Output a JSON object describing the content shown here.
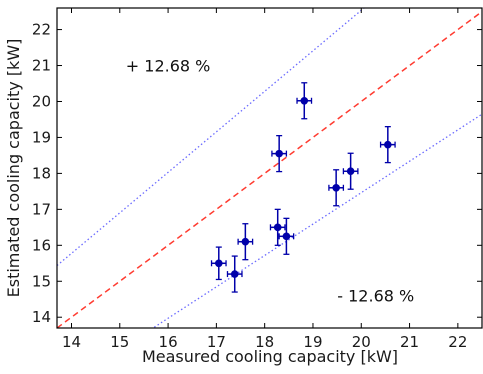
{
  "chart_data": {
    "type": "scatter",
    "title": "",
    "xlabel": "Measured cooling capacity [kW]",
    "ylabel": "Estimated cooling capacity [kW]",
    "xlim": [
      13.7,
      22.5
    ],
    "ylim": [
      13.7,
      22.6
    ],
    "xticks": [
      14,
      15,
      16,
      17,
      18,
      19,
      20,
      21,
      22
    ],
    "yticks": [
      14,
      15,
      16,
      17,
      18,
      19,
      20,
      21,
      22
    ],
    "grid": false,
    "points": [
      {
        "x": 17.05,
        "y": 15.5,
        "xerr": 0.15,
        "yerr": 0.45
      },
      {
        "x": 17.38,
        "y": 15.2,
        "xerr": 0.15,
        "yerr": 0.5
      },
      {
        "x": 17.6,
        "y": 16.1,
        "xerr": 0.15,
        "yerr": 0.5
      },
      {
        "x": 18.27,
        "y": 16.5,
        "xerr": 0.15,
        "yerr": 0.5
      },
      {
        "x": 18.3,
        "y": 18.55,
        "xerr": 0.15,
        "yerr": 0.5
      },
      {
        "x": 18.45,
        "y": 16.25,
        "xerr": 0.15,
        "yerr": 0.5
      },
      {
        "x": 18.82,
        "y": 20.02,
        "xerr": 0.15,
        "yerr": 0.5
      },
      {
        "x": 19.48,
        "y": 17.6,
        "xerr": 0.15,
        "yerr": 0.5
      },
      {
        "x": 19.78,
        "y": 18.06,
        "xerr": 0.15,
        "yerr": 0.5
      },
      {
        "x": 20.55,
        "y": 18.8,
        "xerr": 0.15,
        "yerr": 0.5
      }
    ],
    "reference_lines": [
      {
        "slope": 1.0,
        "style": "dashed",
        "color": "#ff3b30"
      },
      {
        "slope": 1.1268,
        "style": "dotted",
        "color": "#6b6bff"
      },
      {
        "slope": 0.8732,
        "style": "dotted",
        "color": "#6b6bff"
      }
    ],
    "annotations": [
      {
        "text": "+ 12.68 %",
        "x": 16.0,
        "y": 21.0
      },
      {
        "text": "- 12.68 %",
        "x": 20.3,
        "y": 14.6
      }
    ],
    "marker_color": "#0000aa"
  }
}
